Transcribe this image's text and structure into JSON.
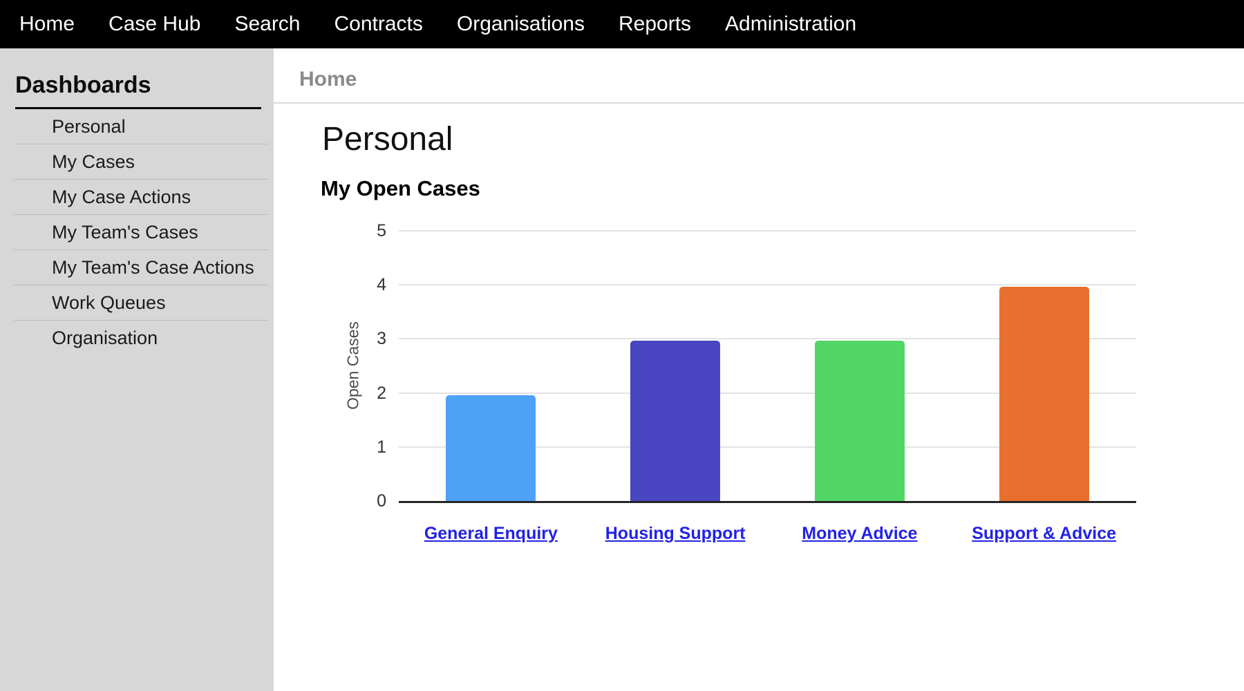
{
  "nav": {
    "items": [
      {
        "label": "Home"
      },
      {
        "label": "Case Hub"
      },
      {
        "label": "Search"
      },
      {
        "label": "Contracts"
      },
      {
        "label": "Organisations"
      },
      {
        "label": "Reports"
      },
      {
        "label": "Administration"
      }
    ]
  },
  "sidebar": {
    "title": "Dashboards",
    "items": [
      {
        "label": "Personal"
      },
      {
        "label": "My Cases"
      },
      {
        "label": "My Case Actions"
      },
      {
        "label": "My Team's Cases"
      },
      {
        "label": "My Team's Case Actions"
      },
      {
        "label": "Work Queues"
      },
      {
        "label": "Organisation"
      }
    ]
  },
  "breadcrumb": {
    "label": "Home"
  },
  "page": {
    "title": "Personal"
  },
  "chart_data": {
    "type": "bar",
    "title": "My Open Cases",
    "categories": [
      "General Enquiry",
      "Housing Support",
      "Money Advice",
      "Support & Advice"
    ],
    "values": [
      2,
      3,
      3,
      4
    ],
    "bar_colors": [
      "#4da1f7",
      "#4a45c1",
      "#52d665",
      "#e8702f"
    ],
    "xlabel": "",
    "ylabel": "Open Cases",
    "ylim": [
      0,
      5
    ],
    "yticks": [
      0,
      1,
      2,
      3,
      4,
      5
    ],
    "grid": true,
    "legend": "none",
    "category_link_color": "#2222e6",
    "gridline_color": "#e3e3e3",
    "axis_line_color": "#262626"
  }
}
